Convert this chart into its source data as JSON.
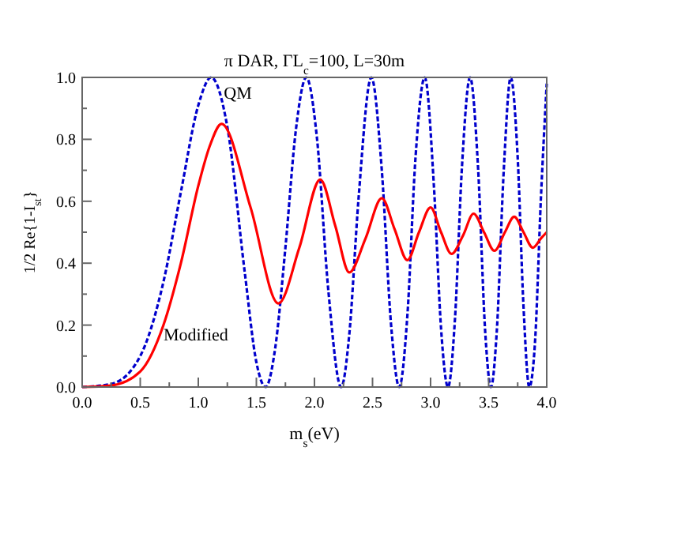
{
  "chart_data": {
    "type": "line",
    "title": "π DAR, ΓL$_{c}$=100, L=30m",
    "xlabel": "m$_{s}$(eV)",
    "ylabel": "1/2 Re{1-I$_{st}$}",
    "xlim": [
      0,
      4
    ],
    "ylim": [
      0,
      1
    ],
    "xticks": [
      {
        "value": 0,
        "label": "0.0"
      },
      {
        "value": 0.25,
        "label": null
      },
      {
        "value": 0.5,
        "label": "0.5"
      },
      {
        "value": 0.75,
        "label": null
      },
      {
        "value": 1,
        "label": "1.0"
      },
      {
        "value": 1.25,
        "label": null
      },
      {
        "value": 1.5,
        "label": "1.5"
      },
      {
        "value": 1.75,
        "label": null
      },
      {
        "value": 2,
        "label": "2.0"
      },
      {
        "value": 2.25,
        "label": null
      },
      {
        "value": 2.5,
        "label": "2.5"
      },
      {
        "value": 2.75,
        "label": null
      },
      {
        "value": 3,
        "label": "3.0"
      },
      {
        "value": 3.25,
        "label": null
      },
      {
        "value": 3.5,
        "label": "3.5"
      },
      {
        "value": 3.75,
        "label": null
      },
      {
        "value": 4,
        "label": "4.0"
      }
    ],
    "yticks": [
      {
        "value": 0,
        "label": "0.0"
      },
      {
        "value": 0.1,
        "label": null
      },
      {
        "value": 0.2,
        "label": "0.2"
      },
      {
        "value": 0.3,
        "label": null
      },
      {
        "value": 0.4,
        "label": "0.4"
      },
      {
        "value": 0.5,
        "label": null
      },
      {
        "value": 0.6,
        "label": "0.6"
      },
      {
        "value": 0.7,
        "label": null
      },
      {
        "value": 0.8,
        "label": "0.8"
      },
      {
        "value": 0.9,
        "label": null
      },
      {
        "value": 1,
        "label": "1.0"
      }
    ],
    "grid": false,
    "marker": "none",
    "annotations": [
      {
        "text": "QM",
        "x": 1.22,
        "y": 0.93
      },
      {
        "text": "Modified",
        "x": 0.7,
        "y": 0.15
      }
    ],
    "series": [
      {
        "color": "#0000cc",
        "line_style": "dashed",
        "x": [
          0,
          0.25,
          0.5,
          0.7,
          0.85,
          1.0,
          1.11,
          1.25,
          1.4,
          1.5,
          1.58,
          1.66,
          1.75,
          1.84,
          1.93,
          2.02,
          2.12,
          2.23,
          2.3,
          2.38,
          2.49,
          2.58,
          2.66,
          2.73,
          2.8,
          2.87,
          2.95,
          3.03,
          3.09,
          3.15,
          3.21,
          3.27,
          3.34,
          3.41,
          3.47,
          3.52,
          3.57,
          3.63,
          3.69,
          3.75,
          3.8,
          3.85,
          3.9,
          3.95,
          4.0
        ],
        "values": [
          0,
          0.01,
          0.1,
          0.34,
          0.63,
          0.91,
          1,
          0.84,
          0.37,
          0.08,
          0,
          0.12,
          0.45,
          0.83,
          1,
          0.81,
          0.31,
          0,
          0.17,
          0.61,
          1,
          0.7,
          0.2,
          0,
          0.23,
          0.74,
          1,
          0.64,
          0.19,
          0,
          0.22,
          0.71,
          1,
          0.7,
          0.18,
          0,
          0.18,
          0.7,
          1,
          0.74,
          0.26,
          0,
          0.15,
          0.61,
          0.98
        ]
      },
      {
        "color": "#ff0000",
        "line_style": "solid",
        "x": [
          0,
          0.25,
          0.5,
          0.7,
          0.85,
          1.0,
          1.1,
          1.2,
          1.45,
          1.69,
          1.87,
          2.05,
          2.18,
          2.3,
          2.44,
          2.58,
          2.69,
          2.8,
          2.9,
          3.0,
          3.09,
          3.18,
          3.28,
          3.37,
          3.46,
          3.55,
          3.64,
          3.72,
          3.8,
          3.88,
          3.95,
          4.0
        ],
        "values": [
          0,
          0.005,
          0.05,
          0.2,
          0.4,
          0.65,
          0.78,
          0.85,
          0.58,
          0.27,
          0.45,
          0.67,
          0.52,
          0.37,
          0.48,
          0.61,
          0.51,
          0.41,
          0.5,
          0.58,
          0.5,
          0.43,
          0.49,
          0.56,
          0.5,
          0.44,
          0.5,
          0.55,
          0.5,
          0.45,
          0.48,
          0.5
        ]
      }
    ]
  }
}
